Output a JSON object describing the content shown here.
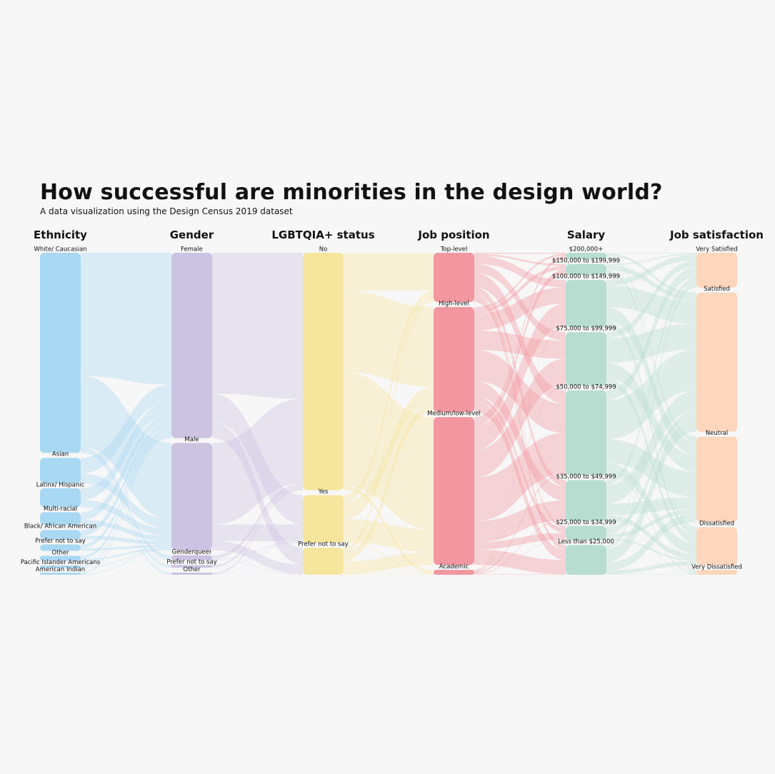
{
  "chart_data": {
    "type": "sankey",
    "title": "How successful are minorities in the design world?",
    "subtitle": "A data visualization using the Design Census 2019 dataset",
    "columns": [
      {
        "name": "Ethnicity",
        "color": "#a8d8f3",
        "nodes": [
          {
            "label": "White/ Caucasian",
            "value": 63
          },
          {
            "label": "Asian",
            "value": 8
          },
          {
            "label": "Latinx/ Hispanic",
            "value": 6
          },
          {
            "label": "Multi-racial",
            "value": 4
          },
          {
            "label": "Black/ African American",
            "value": 3
          },
          {
            "label": "Prefer not to say",
            "value": 2
          },
          {
            "label": "Other",
            "value": 1.5
          },
          {
            "label": "Pacific Islander Americans",
            "value": 0.5
          },
          {
            "label": "American Indian",
            "value": 0.5
          }
        ]
      },
      {
        "name": "Gender",
        "color": "#cbc3e1",
        "nodes": [
          {
            "label": "Female",
            "value": 57
          },
          {
            "label": "Male",
            "value": 33
          },
          {
            "label": "Genderqueer",
            "value": 1.5
          },
          {
            "label": "Prefer not to say",
            "value": 0.8
          },
          {
            "label": "Other",
            "value": 0.3
          }
        ]
      },
      {
        "name": "LGBTQIA+ status",
        "color": "#f6e69d",
        "nodes": [
          {
            "label": "No",
            "value": 70
          },
          {
            "label": "Yes",
            "value": 14
          },
          {
            "label": "Prefer not to say",
            "value": 8
          }
        ]
      },
      {
        "name": "Job position",
        "color": "#f2979f",
        "nodes": [
          {
            "label": "Top-level",
            "value": 15
          },
          {
            "label": "High-level",
            "value": 32
          },
          {
            "label": "Medium/low-level",
            "value": 45
          },
          {
            "label": "Academic",
            "value": 1.5
          }
        ]
      },
      {
        "name": "Salary",
        "color": "#b7ddd0",
        "nodes": [
          {
            "label": "$200,000+",
            "value": 2
          },
          {
            "label": "$150,000 to $199,999",
            "value": 3.5
          },
          {
            "label": "$100,000 to $149,999",
            "value": 15
          },
          {
            "label": "$75,000 to $99,999",
            "value": 17
          },
          {
            "label": "$50,000 to $74,999",
            "value": 27
          },
          {
            "label": "$35,000 to $49,999",
            "value": 13
          },
          {
            "label": "$25,000 to $34,999",
            "value": 4.5
          },
          {
            "label": "Less than $25,000",
            "value": 9.5
          }
        ]
      },
      {
        "name": "Job satisfaction",
        "color": "#fdd6bc",
        "nodes": [
          {
            "label": "Very Satisfied",
            "value": 11
          },
          {
            "label": "Satisfied",
            "value": 44
          },
          {
            "label": "Neutral",
            "value": 27
          },
          {
            "label": "Dissatisfied",
            "value": 12
          },
          {
            "label": "Very Dissatisfied",
            "value": 1.5
          }
        ]
      }
    ]
  }
}
